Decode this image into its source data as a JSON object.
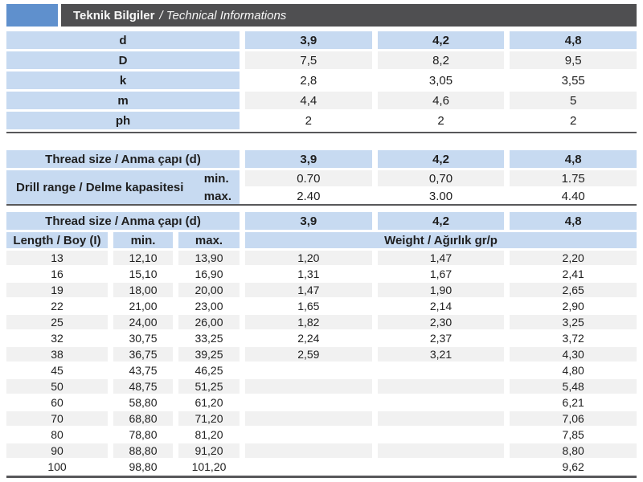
{
  "header": {
    "title_tr": "Teknik Bilgiler",
    "title_en": "/ Technical Informations"
  },
  "colors": {
    "cell_blue": "#c7daf1",
    "logo_blue": "#5f90cd",
    "bar_dark": "#4f4f51",
    "separator_dark": "#58585a",
    "row_alt_gray": "#f1f1f1"
  },
  "dimensions_table": {
    "header": {
      "label": "d",
      "values": [
        "3,9",
        "4,2",
        "4,8"
      ]
    },
    "rows": [
      {
        "label": "D",
        "values": [
          "7,5",
          "8,2",
          "9,5"
        ]
      },
      {
        "label": "k",
        "values": [
          "2,8",
          "3,05",
          "3,55"
        ]
      },
      {
        "label": "m",
        "values": [
          "4,4",
          "4,6",
          "5"
        ]
      },
      {
        "label": "ph",
        "values": [
          "2",
          "2",
          "2"
        ]
      }
    ]
  },
  "drill_range_table": {
    "header": {
      "label": "Thread size / Anma çapı (d)",
      "values": [
        "3,9",
        "4,2",
        "4,8"
      ]
    },
    "row_label": "Drill range / Delme kapasitesi",
    "sub_rows": [
      {
        "label": "min.",
        "values": [
          "0.70",
          "0,70",
          "1.75"
        ]
      },
      {
        "label": "max.",
        "values": [
          "2.40",
          "3.00",
          "4.40"
        ]
      }
    ]
  },
  "length_weight_table": {
    "header": {
      "label": "Thread size / Anma çapı (d)",
      "values": [
        "3,9",
        "4,2",
        "4,8"
      ]
    },
    "subheader": {
      "length": "Length / Boy (I)",
      "min": "min.",
      "max": "max.",
      "weight": "Weight / Ağırlık gr/p"
    },
    "rows": [
      [
        "13",
        "12,10",
        "13,90",
        "1,20",
        "1,47",
        "2,20"
      ],
      [
        "16",
        "15,10",
        "16,90",
        "1,31",
        "1,67",
        "2,41"
      ],
      [
        "19",
        "18,00",
        "20,00",
        "1,47",
        "1,90",
        "2,65"
      ],
      [
        "22",
        "21,00",
        "23,00",
        "1,65",
        "2,14",
        "2,90"
      ],
      [
        "25",
        "24,00",
        "26,00",
        "1,82",
        "2,30",
        "3,25"
      ],
      [
        "32",
        "30,75",
        "33,25",
        "2,24",
        "2,37",
        "3,72"
      ],
      [
        "38",
        "36,75",
        "39,25",
        "2,59",
        "3,21",
        "4,30"
      ],
      [
        "45",
        "43,75",
        "46,25",
        "",
        "",
        "4,80"
      ],
      [
        "50",
        "48,75",
        "51,25",
        "",
        "",
        "5,48"
      ],
      [
        "60",
        "58,80",
        "61,20",
        "",
        "",
        "6,21"
      ],
      [
        "70",
        "68,80",
        "71,20",
        "",
        "",
        "7,06"
      ],
      [
        "80",
        "78,80",
        "81,20",
        "",
        "",
        "7,85"
      ],
      [
        "90",
        "88,80",
        "91,20",
        "",
        "",
        "8,80"
      ],
      [
        "100",
        "98,80",
        "101,20",
        "",
        "",
        "9,62"
      ]
    ]
  }
}
